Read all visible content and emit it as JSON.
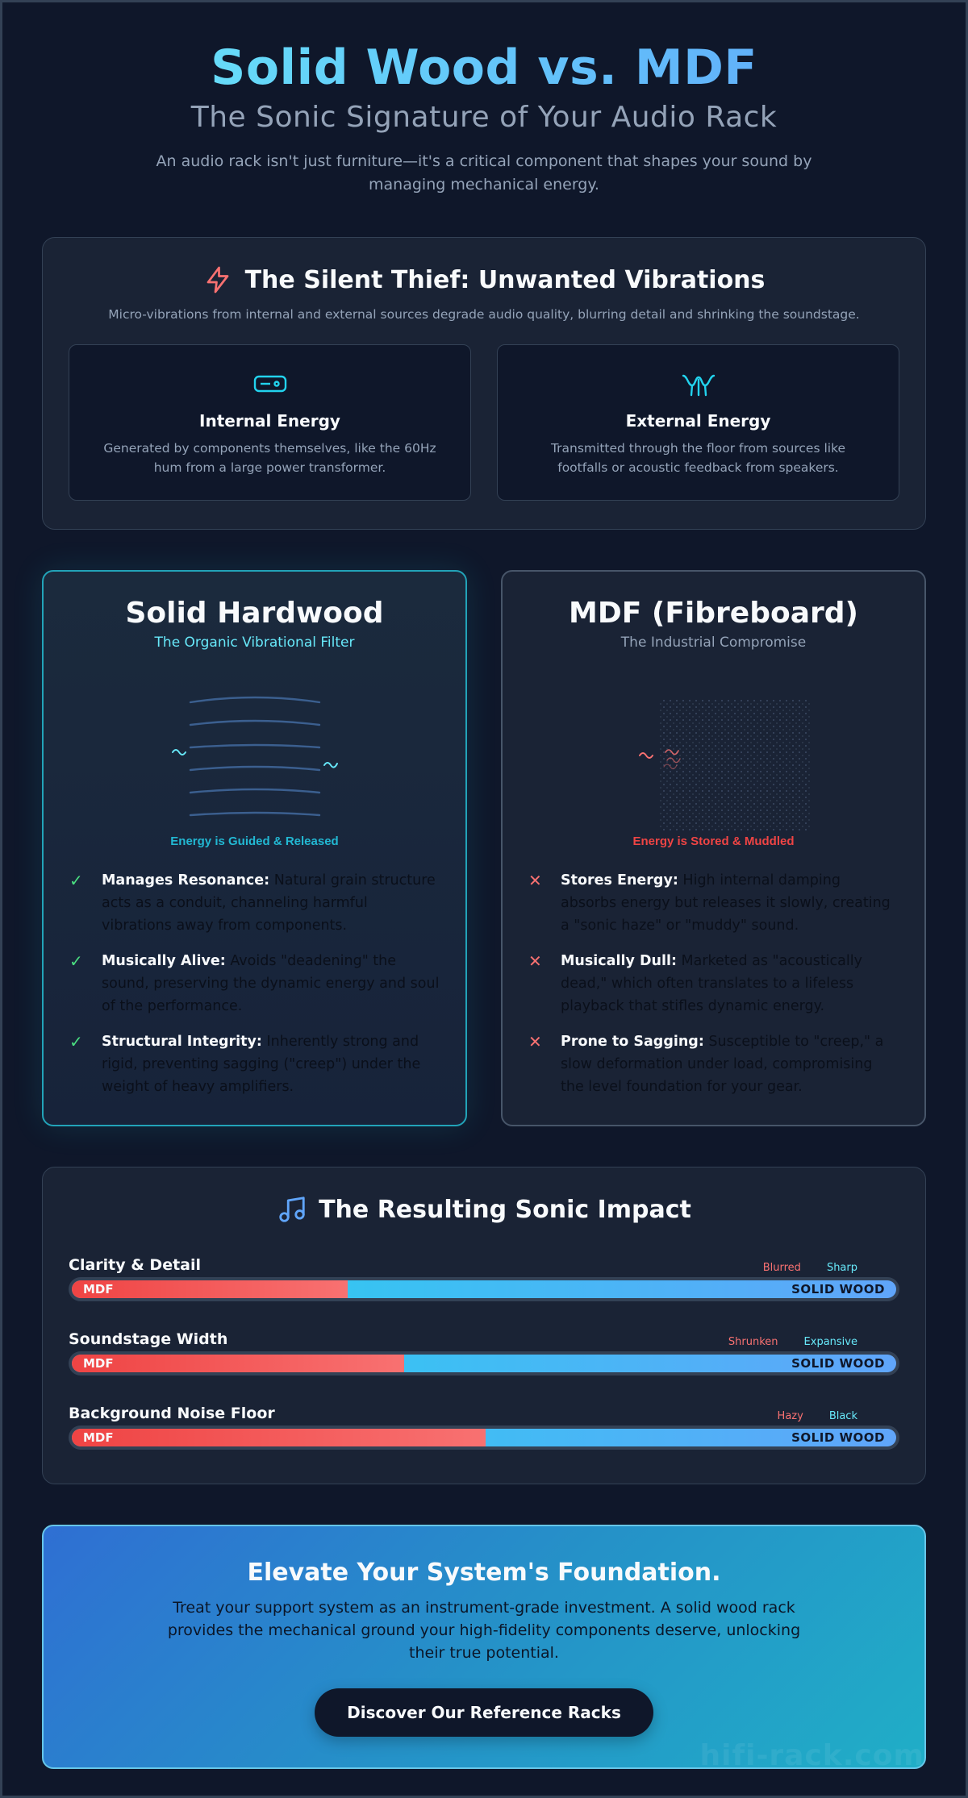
{
  "header": {
    "title": "Solid Wood vs. MDF",
    "subtitle": "The Sonic Signature of Your Audio Rack",
    "intro": "An audio rack isn't just furniture—it's a critical component that shapes your sound by managing mechanical energy."
  },
  "vibrations": {
    "icon": "lightning-icon",
    "title": "The Silent Thief: Unwanted Vibrations",
    "subtitle": "Micro-vibrations from internal and external sources degrade audio quality, blurring detail and shrinking the soundstage.",
    "cards": [
      {
        "icon": "power-transformer-icon",
        "title": "Internal Energy",
        "text": "Generated by components themselves, like the 60Hz hum from a large power transformer."
      },
      {
        "icon": "footfall-wave-icon",
        "title": "External Energy",
        "text": "Transmitted through the floor from sources like footfalls or acoustic feedback from speakers."
      }
    ]
  },
  "wood": {
    "title": "Solid Hardwood",
    "tagline": "The Organic Vibrational Filter",
    "caption": "Energy is Guided & Released",
    "features": [
      {
        "bold": "Manages Resonance:",
        "text": " Natural grain structure acts as a conduit, channeling harmful vibrations away from components."
      },
      {
        "bold": "Musically Alive:",
        "text": " Avoids \"deadening\" the sound, preserving the dynamic energy and soul of the performance."
      },
      {
        "bold": "Structural Integrity:",
        "text": " Inherently strong and rigid, preventing sagging (\"creep\") under the weight of heavy amplifiers."
      }
    ],
    "mark": "✓",
    "color": "#22d3ee"
  },
  "mdf": {
    "title": "MDF (Fibreboard)",
    "tagline": "The Industrial Compromise",
    "caption": "Energy is Stored & Muddled",
    "features": [
      {
        "bold": "Stores Energy:",
        "text": " High internal damping absorbs energy but releases it slowly, creating a \"sonic haze\" or \"muddy\" sound."
      },
      {
        "bold": "Musically Dull:",
        "text": " Marketed as \"acoustically dead,\" which often translates to a lifeless playback that stifles dynamic energy."
      },
      {
        "bold": "Prone to Sagging:",
        "text": " Susceptible to \"creep,\" a slow deformation under load, compromising the level foundation for your gear."
      }
    ],
    "mark": "✕",
    "color": "#ef4444"
  },
  "impact": {
    "icon": "music-note-icon",
    "title": "The Resulting Sonic Impact",
    "left_label": "MDF",
    "right_label": "SOLID WOOD",
    "metrics": [
      {
        "label": "Clarity & Detail",
        "low": "Blurred",
        "high": "Sharp",
        "mdf_share": 0.335
      },
      {
        "label": "Soundstage Width",
        "low": "Shrunken",
        "high": "Expansive",
        "mdf_share": 0.403
      },
      {
        "label": "Background Noise Floor",
        "low": "Hazy",
        "high": "Black",
        "mdf_share": 0.502
      }
    ]
  },
  "cta": {
    "title": "Elevate Your System's Foundation.",
    "text": "Treat your support system as an instrument-grade investment. A solid wood rack provides the mechanical ground your high-fidelity components deserve, unlocking their true potential.",
    "button": "Discover Our Reference Racks",
    "watermark": "hifi-rack.com"
  }
}
